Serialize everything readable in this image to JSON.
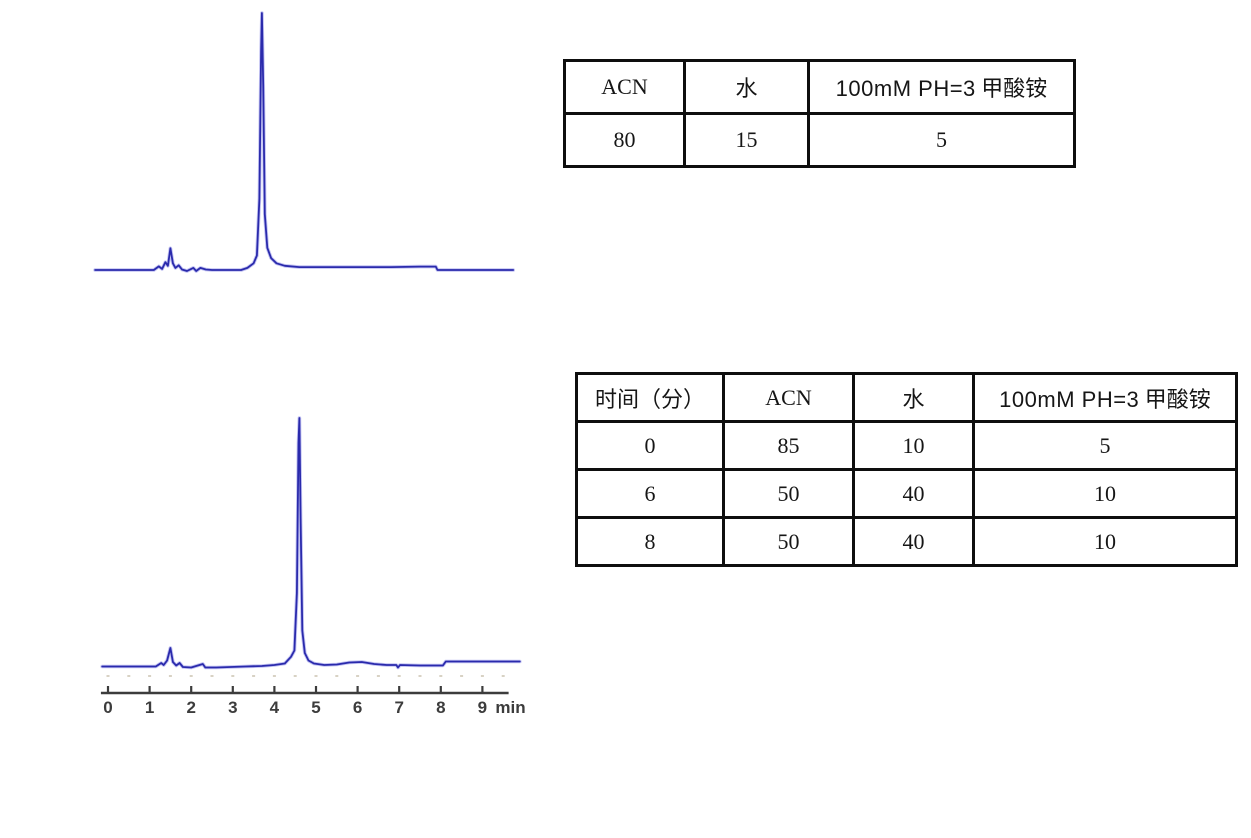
{
  "colors": {
    "trace_core": "#2a2aac",
    "trace_halo": "#9090e8",
    "axis_line": "#3c3c3c",
    "tick_label": "#3c3c3c",
    "minor_dash": "#d8d2c4",
    "table_border": "#0e0e0e"
  },
  "tables": {
    "isocratic": {
      "col_acn": "ACN",
      "col_water": "水",
      "col_buffer_en": "100mM PH=3",
      "col_buffer_cn": "甲酸铵",
      "rows": [
        [
          "80",
          "15",
          "5"
        ]
      ]
    },
    "gradient": {
      "col_time": "时间（分）",
      "col_acn": "ACN",
      "col_water": "水",
      "col_buffer_en": "100mM PH=3",
      "col_buffer_cn": "甲酸铵",
      "rows": [
        [
          "0",
          "85",
          "10",
          "5"
        ],
        [
          "6",
          "50",
          "40",
          "10"
        ],
        [
          "8",
          "50",
          "40",
          "10"
        ]
      ]
    }
  },
  "chart_data": [
    {
      "type": "line",
      "title": "HPLC chromatogram, isocratic mobile phase (ACN 80 / water 15 / buffer 5)",
      "xlabel": "min",
      "x_range": [
        -0.3,
        9.75
      ],
      "main_peak_x_min": 3.7,
      "noise_cluster_x_min": [
        1.2,
        2.4
      ],
      "axis": null,
      "trace": [
        [
          -0.31,
          0.004
        ],
        [
          0.5,
          0.004
        ],
        [
          1.1,
          0.004
        ],
        [
          1.22,
          0.018
        ],
        [
          1.3,
          0.008
        ],
        [
          1.38,
          0.034
        ],
        [
          1.44,
          0.02
        ],
        [
          1.5,
          0.088
        ],
        [
          1.56,
          0.03
        ],
        [
          1.62,
          0.012
        ],
        [
          1.7,
          0.022
        ],
        [
          1.78,
          0.006
        ],
        [
          1.9,
          0.0
        ],
        [
          2.05,
          0.012
        ],
        [
          2.12,
          0.0
        ],
        [
          2.22,
          0.012
        ],
        [
          2.35,
          0.006
        ],
        [
          2.5,
          0.004
        ],
        [
          3.2,
          0.004
        ],
        [
          3.35,
          0.012
        ],
        [
          3.5,
          0.03
        ],
        [
          3.58,
          0.06
        ],
        [
          3.64,
          0.28
        ],
        [
          3.68,
          0.85
        ],
        [
          3.7,
          1.0
        ],
        [
          3.73,
          0.72
        ],
        [
          3.77,
          0.22
        ],
        [
          3.83,
          0.09
        ],
        [
          3.92,
          0.05
        ],
        [
          4.05,
          0.03
        ],
        [
          4.25,
          0.02
        ],
        [
          4.6,
          0.015
        ],
        [
          5.2,
          0.015
        ],
        [
          6.0,
          0.015
        ],
        [
          6.8,
          0.015
        ],
        [
          7.5,
          0.017
        ],
        [
          7.88,
          0.017
        ],
        [
          7.92,
          0.004
        ],
        [
          8.6,
          0.004
        ],
        [
          9.74,
          0.004
        ]
      ]
    },
    {
      "type": "line",
      "title": "HPLC chromatogram, gradient mobile phase",
      "xlabel": "min",
      "x_range": [
        -0.15,
        9.9
      ],
      "main_peak_x_min": 4.6,
      "noise_cluster_x_min": [
        1.25,
        1.8
      ],
      "axis": {
        "ticks": [
          0,
          1,
          2,
          3,
          4,
          5,
          6,
          7,
          8,
          9
        ],
        "minor_step": 0.5,
        "unit": "min",
        "x_start": -0.17,
        "x_end": 9.63
      },
      "trace": [
        [
          -0.14,
          0.006
        ],
        [
          0.6,
          0.006
        ],
        [
          1.15,
          0.006
        ],
        [
          1.28,
          0.02
        ],
        [
          1.34,
          0.012
        ],
        [
          1.42,
          0.03
        ],
        [
          1.5,
          0.08
        ],
        [
          1.56,
          0.024
        ],
        [
          1.64,
          0.01
        ],
        [
          1.72,
          0.02
        ],
        [
          1.8,
          0.004
        ],
        [
          2.0,
          0.002
        ],
        [
          2.28,
          0.016
        ],
        [
          2.34,
          0.002
        ],
        [
          2.6,
          0.002
        ],
        [
          3.3,
          0.006
        ],
        [
          3.7,
          0.008
        ],
        [
          4.0,
          0.012
        ],
        [
          4.25,
          0.018
        ],
        [
          4.4,
          0.045
        ],
        [
          4.48,
          0.07
        ],
        [
          4.54,
          0.3
        ],
        [
          4.58,
          0.9
        ],
        [
          4.6,
          1.0
        ],
        [
          4.63,
          0.6
        ],
        [
          4.67,
          0.15
        ],
        [
          4.73,
          0.06
        ],
        [
          4.82,
          0.03
        ],
        [
          4.95,
          0.018
        ],
        [
          5.2,
          0.012
        ],
        [
          5.5,
          0.014
        ],
        [
          5.8,
          0.022
        ],
        [
          6.1,
          0.024
        ],
        [
          6.4,
          0.016
        ],
        [
          6.7,
          0.012
        ],
        [
          6.93,
          0.012
        ],
        [
          6.97,
          0.002
        ],
        [
          7.02,
          0.012
        ],
        [
          7.5,
          0.01
        ],
        [
          8.05,
          0.01
        ],
        [
          8.12,
          0.026
        ],
        [
          8.7,
          0.026
        ],
        [
          9.3,
          0.026
        ],
        [
          9.9,
          0.026
        ]
      ]
    }
  ]
}
